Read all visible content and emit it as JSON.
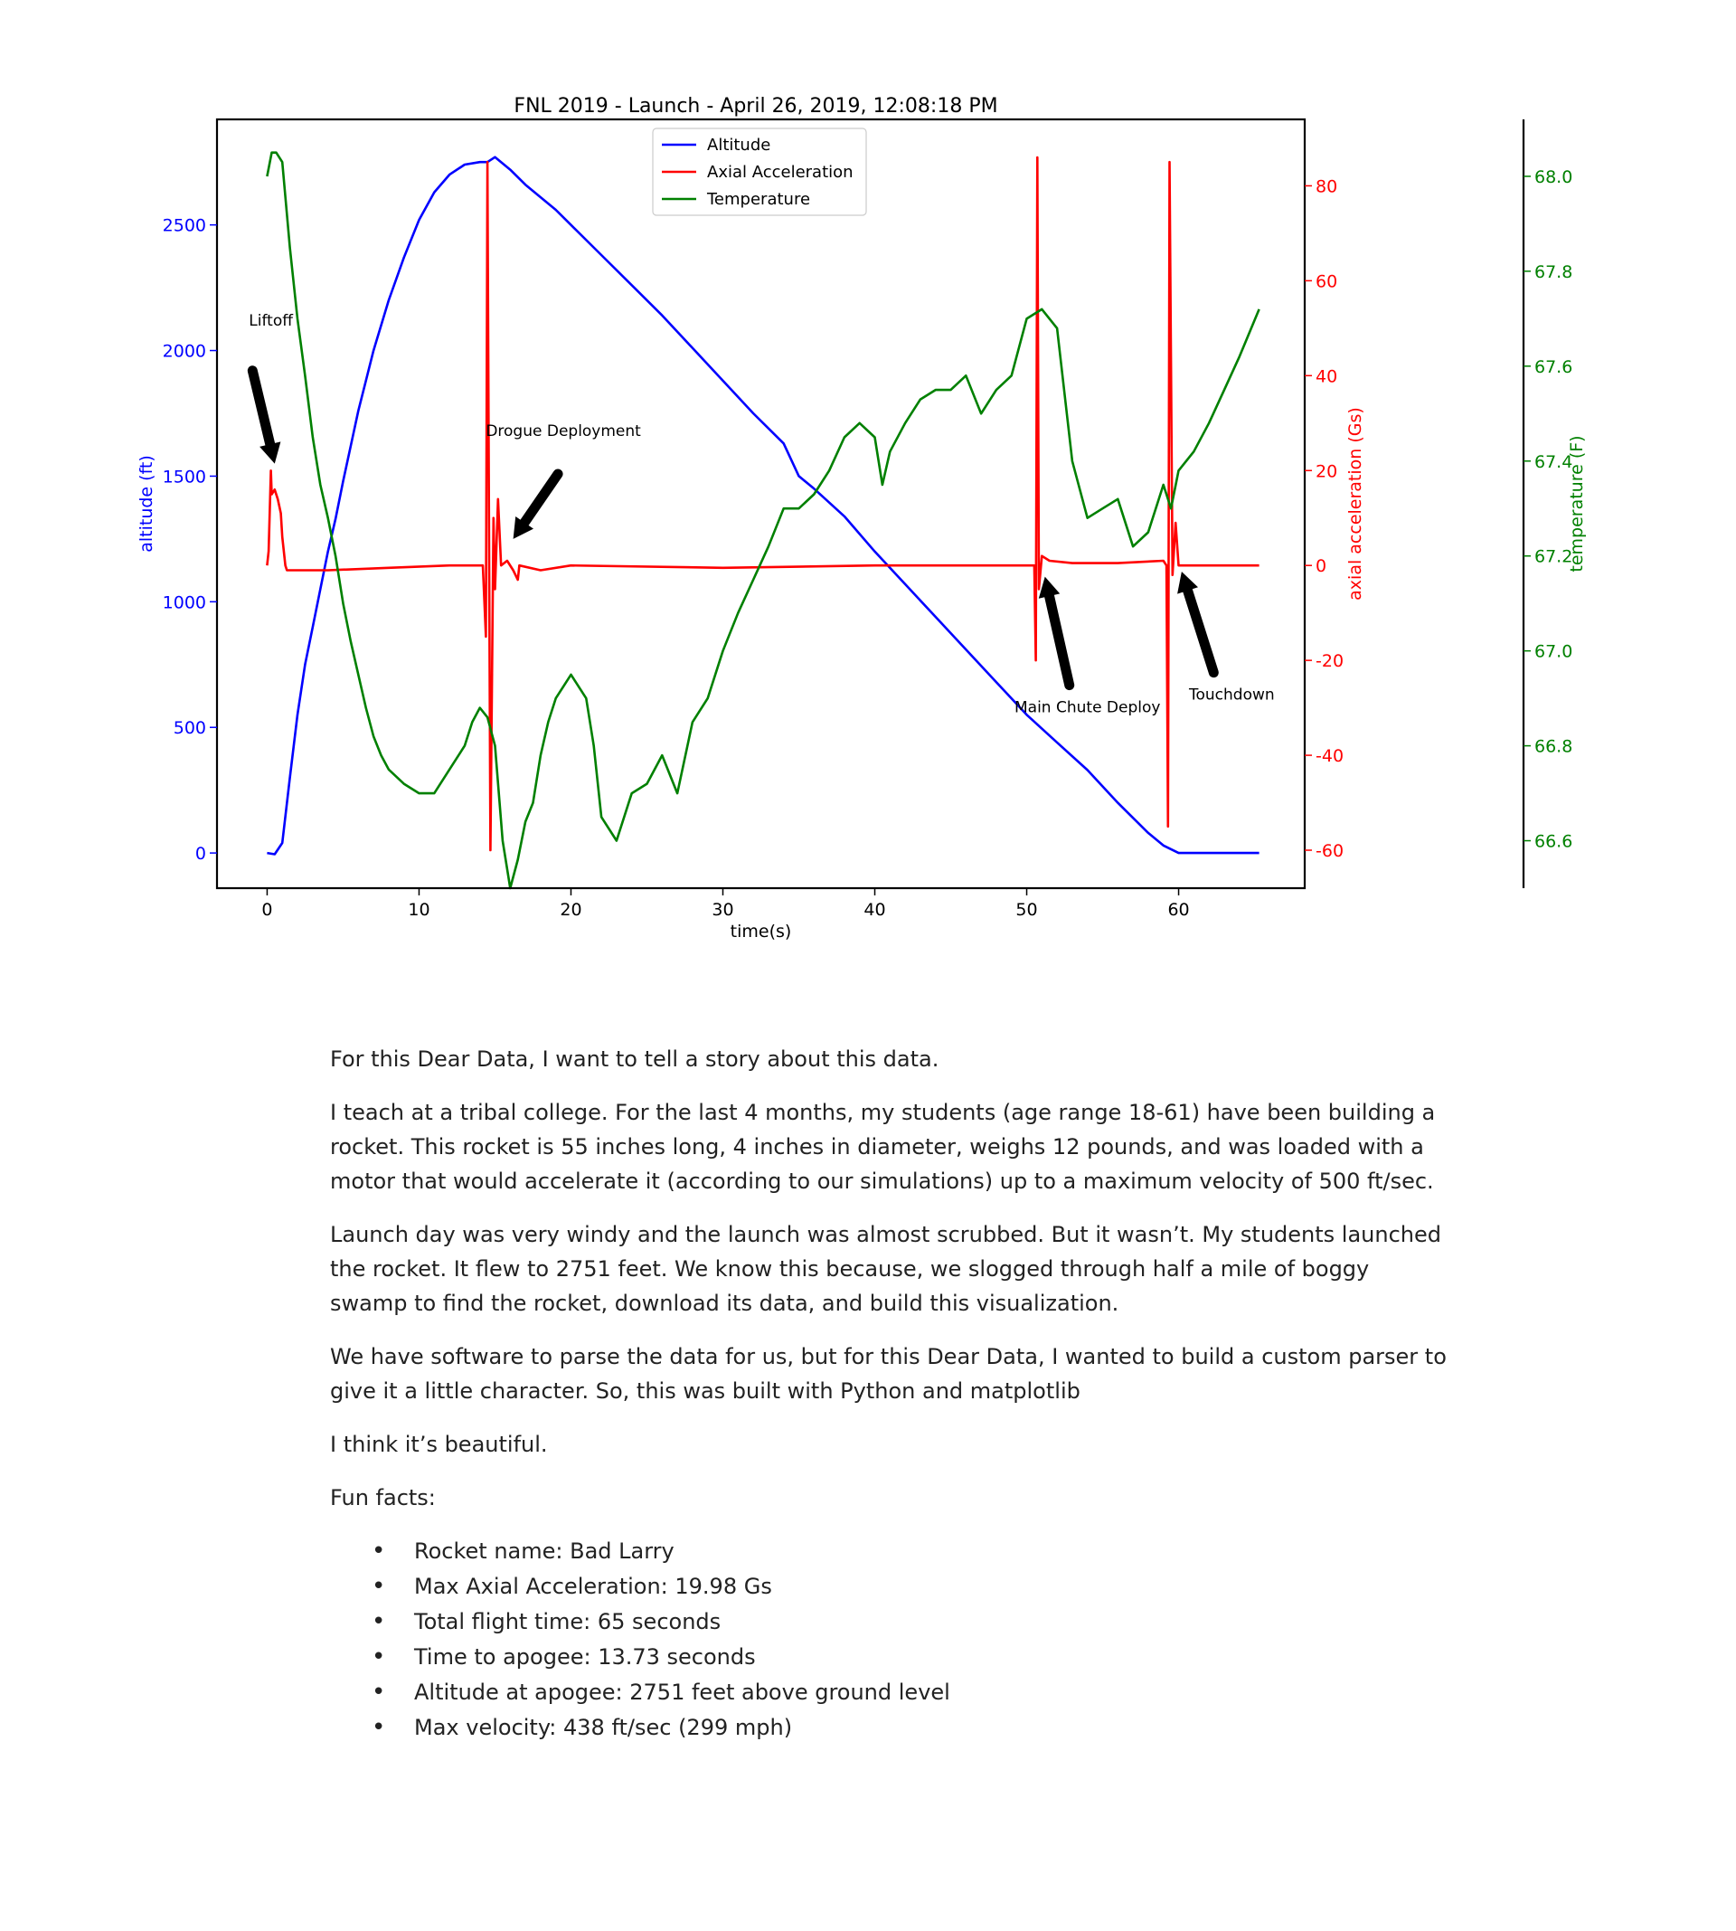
{
  "chart_data": {
    "type": "line",
    "title": "FNL 2019 - Launch - April 26, 2019, 12:08:18 PM",
    "xlabel": "time(s)",
    "xlim": [
      -3.3,
      68.3
    ],
    "xticks": [
      0,
      10,
      20,
      30,
      40,
      50,
      60
    ],
    "legend_position": "top-center",
    "grid": false,
    "axes": [
      {
        "id": "alt",
        "label": "altitude (ft)",
        "side": "left",
        "color": "#0000ff",
        "ylim": [
          -140,
          2920
        ],
        "ticks": [
          0,
          500,
          1000,
          1500,
          2000,
          2500
        ]
      },
      {
        "id": "acc",
        "label": "axial acceleration (Gs)",
        "side": "right",
        "color": "#ff0000",
        "ylim": [
          -68,
          94
        ],
        "ticks": [
          -60,
          -40,
          -20,
          0,
          20,
          40,
          60,
          80
        ]
      },
      {
        "id": "temp",
        "label": "temperature (F)",
        "side": "right-outer",
        "color": "#008000",
        "ylim": [
          66.5,
          68.12
        ],
        "ticks": [
          66.6,
          66.8,
          67.0,
          67.2,
          67.4,
          67.6,
          67.8,
          68.0
        ]
      }
    ],
    "series": [
      {
        "name": "Altitude",
        "axis": "alt",
        "color": "#0000ff",
        "points": [
          [
            0,
            0
          ],
          [
            0.5,
            -5
          ],
          [
            1,
            40
          ],
          [
            1.5,
            300
          ],
          [
            2,
            550
          ],
          [
            2.5,
            750
          ],
          [
            3,
            900
          ],
          [
            3.5,
            1050
          ],
          [
            4,
            1200
          ],
          [
            4.5,
            1330
          ],
          [
            5,
            1480
          ],
          [
            5.5,
            1620
          ],
          [
            6,
            1760
          ],
          [
            6.5,
            1880
          ],
          [
            7,
            2000
          ],
          [
            8,
            2200
          ],
          [
            9,
            2370
          ],
          [
            10,
            2520
          ],
          [
            11,
            2630
          ],
          [
            12,
            2700
          ],
          [
            13,
            2740
          ],
          [
            14,
            2750
          ],
          [
            14.5,
            2750
          ],
          [
            15,
            2770
          ],
          [
            16,
            2720
          ],
          [
            17,
            2660
          ],
          [
            18,
            2610
          ],
          [
            19,
            2560
          ],
          [
            20,
            2500
          ],
          [
            22,
            2380
          ],
          [
            24,
            2260
          ],
          [
            26,
            2140
          ],
          [
            28,
            2010
          ],
          [
            30,
            1880
          ],
          [
            32,
            1750
          ],
          [
            34,
            1630
          ],
          [
            35,
            1500
          ],
          [
            36,
            1450
          ],
          [
            38,
            1340
          ],
          [
            40,
            1200
          ],
          [
            42,
            1070
          ],
          [
            44,
            940
          ],
          [
            46,
            810
          ],
          [
            48,
            680
          ],
          [
            50,
            550
          ],
          [
            52,
            440
          ],
          [
            54,
            330
          ],
          [
            56,
            200
          ],
          [
            58,
            80
          ],
          [
            59,
            30
          ],
          [
            60,
            0
          ],
          [
            62,
            0
          ],
          [
            65.3,
            0
          ]
        ]
      },
      {
        "name": "Axial Acceleration",
        "axis": "acc",
        "color": "#ff0000",
        "points": [
          [
            0,
            0
          ],
          [
            0.1,
            3
          ],
          [
            0.25,
            20
          ],
          [
            0.3,
            15
          ],
          [
            0.5,
            16
          ],
          [
            0.7,
            14
          ],
          [
            0.9,
            11
          ],
          [
            1,
            6
          ],
          [
            1.2,
            0
          ],
          [
            1.3,
            -1
          ],
          [
            4,
            -1
          ],
          [
            8,
            -0.5
          ],
          [
            12,
            0
          ],
          [
            14.2,
            0
          ],
          [
            14.4,
            -15
          ],
          [
            14.5,
            85
          ],
          [
            14.7,
            -60
          ],
          [
            14.9,
            10
          ],
          [
            15.0,
            -5
          ],
          [
            15.2,
            14
          ],
          [
            15.4,
            0
          ],
          [
            15.8,
            1
          ],
          [
            16.2,
            -1
          ],
          [
            16.5,
            -3
          ],
          [
            16.6,
            0
          ],
          [
            18,
            -1
          ],
          [
            20,
            0
          ],
          [
            30,
            -0.5
          ],
          [
            40,
            0
          ],
          [
            50,
            0
          ],
          [
            50.5,
            0
          ],
          [
            50.6,
            -20
          ],
          [
            50.7,
            86
          ],
          [
            50.8,
            -5
          ],
          [
            51.0,
            2
          ],
          [
            51.5,
            1
          ],
          [
            53,
            0.5
          ],
          [
            56,
            0.5
          ],
          [
            59,
            1
          ],
          [
            59.2,
            0
          ],
          [
            59.3,
            -55
          ],
          [
            59.4,
            85
          ],
          [
            59.6,
            -2
          ],
          [
            59.8,
            9
          ],
          [
            60,
            0
          ],
          [
            62,
            0
          ],
          [
            65.3,
            0
          ]
        ]
      },
      {
        "name": "Temperature",
        "axis": "temp",
        "color": "#008000",
        "points": [
          [
            0,
            68.0
          ],
          [
            0.3,
            68.05
          ],
          [
            0.6,
            68.05
          ],
          [
            1,
            68.03
          ],
          [
            1.5,
            67.85
          ],
          [
            2,
            67.7
          ],
          [
            2.5,
            67.58
          ],
          [
            3,
            67.45
          ],
          [
            3.5,
            67.35
          ],
          [
            4,
            67.28
          ],
          [
            4.5,
            67.2
          ],
          [
            5,
            67.1
          ],
          [
            5.5,
            67.02
          ],
          [
            6,
            66.95
          ],
          [
            6.5,
            66.88
          ],
          [
            7,
            66.82
          ],
          [
            7.5,
            66.78
          ],
          [
            8,
            66.75
          ],
          [
            9,
            66.72
          ],
          [
            10,
            66.7
          ],
          [
            11,
            66.7
          ],
          [
            12,
            66.75
          ],
          [
            13,
            66.8
          ],
          [
            13.5,
            66.85
          ],
          [
            14,
            66.88
          ],
          [
            14.5,
            66.86
          ],
          [
            15,
            66.8
          ],
          [
            15.5,
            66.6
          ],
          [
            16,
            66.5
          ],
          [
            16.5,
            66.56
          ],
          [
            17,
            66.64
          ],
          [
            17.5,
            66.68
          ],
          [
            18,
            66.78
          ],
          [
            18.5,
            66.85
          ],
          [
            19,
            66.9
          ],
          [
            20,
            66.95
          ],
          [
            21,
            66.9
          ],
          [
            21.5,
            66.8
          ],
          [
            22,
            66.65
          ],
          [
            23,
            66.6
          ],
          [
            24,
            66.7
          ],
          [
            25,
            66.72
          ],
          [
            26,
            66.78
          ],
          [
            27,
            66.7
          ],
          [
            28,
            66.85
          ],
          [
            29,
            66.9
          ],
          [
            30,
            67.0
          ],
          [
            31,
            67.08
          ],
          [
            32,
            67.15
          ],
          [
            33,
            67.22
          ],
          [
            34,
            67.3
          ],
          [
            35,
            67.3
          ],
          [
            36,
            67.33
          ],
          [
            37,
            67.38
          ],
          [
            38,
            67.45
          ],
          [
            39,
            67.48
          ],
          [
            40,
            67.45
          ],
          [
            40.5,
            67.35
          ],
          [
            41,
            67.42
          ],
          [
            42,
            67.48
          ],
          [
            43,
            67.53
          ],
          [
            44,
            67.55
          ],
          [
            45,
            67.55
          ],
          [
            46,
            67.58
          ],
          [
            47,
            67.5
          ],
          [
            48,
            67.55
          ],
          [
            49,
            67.58
          ],
          [
            50,
            67.7
          ],
          [
            51,
            67.72
          ],
          [
            52,
            67.68
          ],
          [
            53,
            67.4
          ],
          [
            54,
            67.28
          ],
          [
            55,
            67.3
          ],
          [
            56,
            67.32
          ],
          [
            57,
            67.22
          ],
          [
            58,
            67.25
          ],
          [
            59,
            67.35
          ],
          [
            59.5,
            67.3
          ],
          [
            60,
            67.38
          ],
          [
            61,
            67.42
          ],
          [
            62,
            67.48
          ],
          [
            63,
            67.55
          ],
          [
            64,
            67.62
          ],
          [
            65.3,
            67.72
          ]
        ]
      }
    ],
    "annotations": [
      {
        "text": "Liftoff",
        "x": 0.5,
        "y_alt": 1550,
        "label_x": -1.2,
        "label_y_alt": 2100
      },
      {
        "text": "Drogue Deployment",
        "x": 16.2,
        "y_alt": 1250,
        "label_x": 19.5,
        "label_y_alt": 1660
      },
      {
        "text": "Main Chute Deploy",
        "x": 51.2,
        "y_alt": 1100,
        "label_x": 54,
        "label_y_alt": 560
      },
      {
        "text": "Touchdown",
        "x": 60.2,
        "y_alt": 1120,
        "label_x": 63.5,
        "label_y_alt": 610
      }
    ]
  },
  "document": {
    "paragraphs": [
      "For this Dear Data, I want to tell a story about this data.",
      "I teach at a tribal college. For the last 4 months, my students (age range 18-61) have been building a rocket. This rocket is 55 inches long, 4 inches in diameter, weighs 12 pounds, and was loaded with a motor that would accelerate it (according to our simulations) up to a maximum velocity of 500 ft/sec.",
      "Launch day was very windy and the launch was almost scrubbed. But it wasn’t. My students launched the rocket. It flew to 2751 feet. We know this because, we slogged through half a mile of boggy swamp to find the rocket, download its data, and build this visualization.",
      "We have software to parse the data for us, but for this Dear Data, I wanted to build a custom parser to give it a little character. So, this was built with Python and matplotlib",
      "I think it’s beautiful.",
      "Fun facts:"
    ],
    "bullets": [
      "Rocket name: Bad Larry",
      "Max Axial Acceleration: 19.98 Gs",
      "Total flight time: 65 seconds",
      "Time to apogee: 13.73 seconds",
      "Altitude at apogee: 2751 feet above ground level",
      "Max velocity: 438 ft/sec (299 mph)"
    ]
  }
}
